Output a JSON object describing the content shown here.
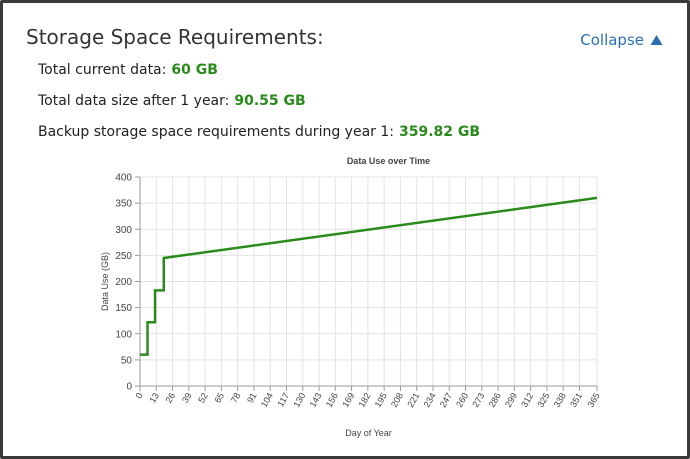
{
  "header": {
    "title": "Storage Space Requirements:",
    "collapse": "Collapse"
  },
  "summary": [
    {
      "label": "Total current data:",
      "value": "60 GB"
    },
    {
      "label": "Total data size after 1 year:",
      "value": "90.55 GB"
    },
    {
      "label": "Backup storage space requirements during year 1:",
      "value": "359.82 GB"
    }
  ],
  "chart_data": {
    "type": "line",
    "title": "Data Use over Time",
    "x_label": "Day of Year",
    "y_label": "Data Use (GB)",
    "x": [
      0,
      6,
      6,
      12,
      12,
      19,
      19,
      365
    ],
    "values": [
      60,
      60,
      122,
      122,
      183,
      183,
      245,
      360
    ],
    "color": "#2a8a1c",
    "xlim": [
      0,
      365
    ],
    "xticks": [
      0,
      13,
      26,
      39,
      52,
      65,
      78,
      91,
      104,
      117,
      130,
      143,
      156,
      169,
      182,
      195,
      208,
      221,
      234,
      247,
      260,
      273,
      286,
      299,
      312,
      325,
      338,
      351,
      365
    ],
    "ylim": [
      0,
      400
    ],
    "yticks": [
      0,
      50,
      100,
      150,
      200,
      250,
      300,
      350,
      400
    ],
    "grid": true
  }
}
